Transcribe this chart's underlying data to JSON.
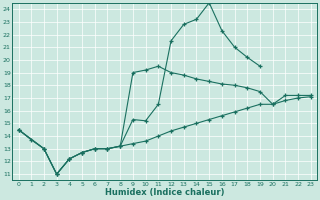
{
  "xlabel": "Humidex (Indice chaleur)",
  "background_color": "#cce8e0",
  "line_color": "#1a7060",
  "xlim": [
    -0.5,
    23.5
  ],
  "ylim": [
    10.5,
    24.5
  ],
  "xticks": [
    0,
    1,
    2,
    3,
    4,
    5,
    6,
    7,
    8,
    9,
    10,
    11,
    12,
    13,
    14,
    15,
    16,
    17,
    18,
    19,
    20,
    21,
    22,
    23
  ],
  "yticks": [
    11,
    12,
    13,
    14,
    15,
    16,
    17,
    18,
    19,
    20,
    21,
    22,
    23,
    24
  ],
  "line1_x": [
    0,
    1,
    2,
    3,
    4,
    5,
    6,
    7,
    8,
    9,
    10,
    11,
    12,
    13,
    14,
    15,
    16,
    17,
    18,
    19
  ],
  "line1_y": [
    14.5,
    13.7,
    13.0,
    11.0,
    12.2,
    12.7,
    13.0,
    13.0,
    13.2,
    15.3,
    15.2,
    16.5,
    21.5,
    22.8,
    23.2,
    24.5,
    22.3,
    21.0,
    20.2,
    19.5
  ],
  "line2_x": [
    0,
    2,
    3,
    4,
    5,
    6,
    7,
    8,
    9,
    10,
    11,
    12,
    13,
    14,
    15,
    16,
    17,
    18,
    19,
    20,
    21,
    22,
    23
  ],
  "line2_y": [
    14.5,
    13.0,
    11.0,
    12.2,
    12.7,
    13.0,
    13.0,
    13.2,
    19.0,
    19.2,
    19.5,
    19.0,
    18.8,
    18.5,
    18.3,
    18.1,
    18.0,
    17.8,
    17.5,
    16.5,
    17.2,
    17.2,
    17.2
  ],
  "line3_x": [
    0,
    2,
    3,
    4,
    5,
    6,
    7,
    8,
    9,
    10,
    11,
    12,
    13,
    14,
    15,
    16,
    17,
    18,
    19,
    20,
    21,
    22,
    23
  ],
  "line3_y": [
    14.5,
    13.0,
    11.0,
    12.2,
    12.7,
    13.0,
    13.0,
    13.2,
    13.4,
    13.6,
    14.0,
    14.4,
    14.7,
    15.0,
    15.3,
    15.6,
    15.9,
    16.2,
    16.5,
    16.5,
    16.8,
    17.0,
    17.1
  ]
}
